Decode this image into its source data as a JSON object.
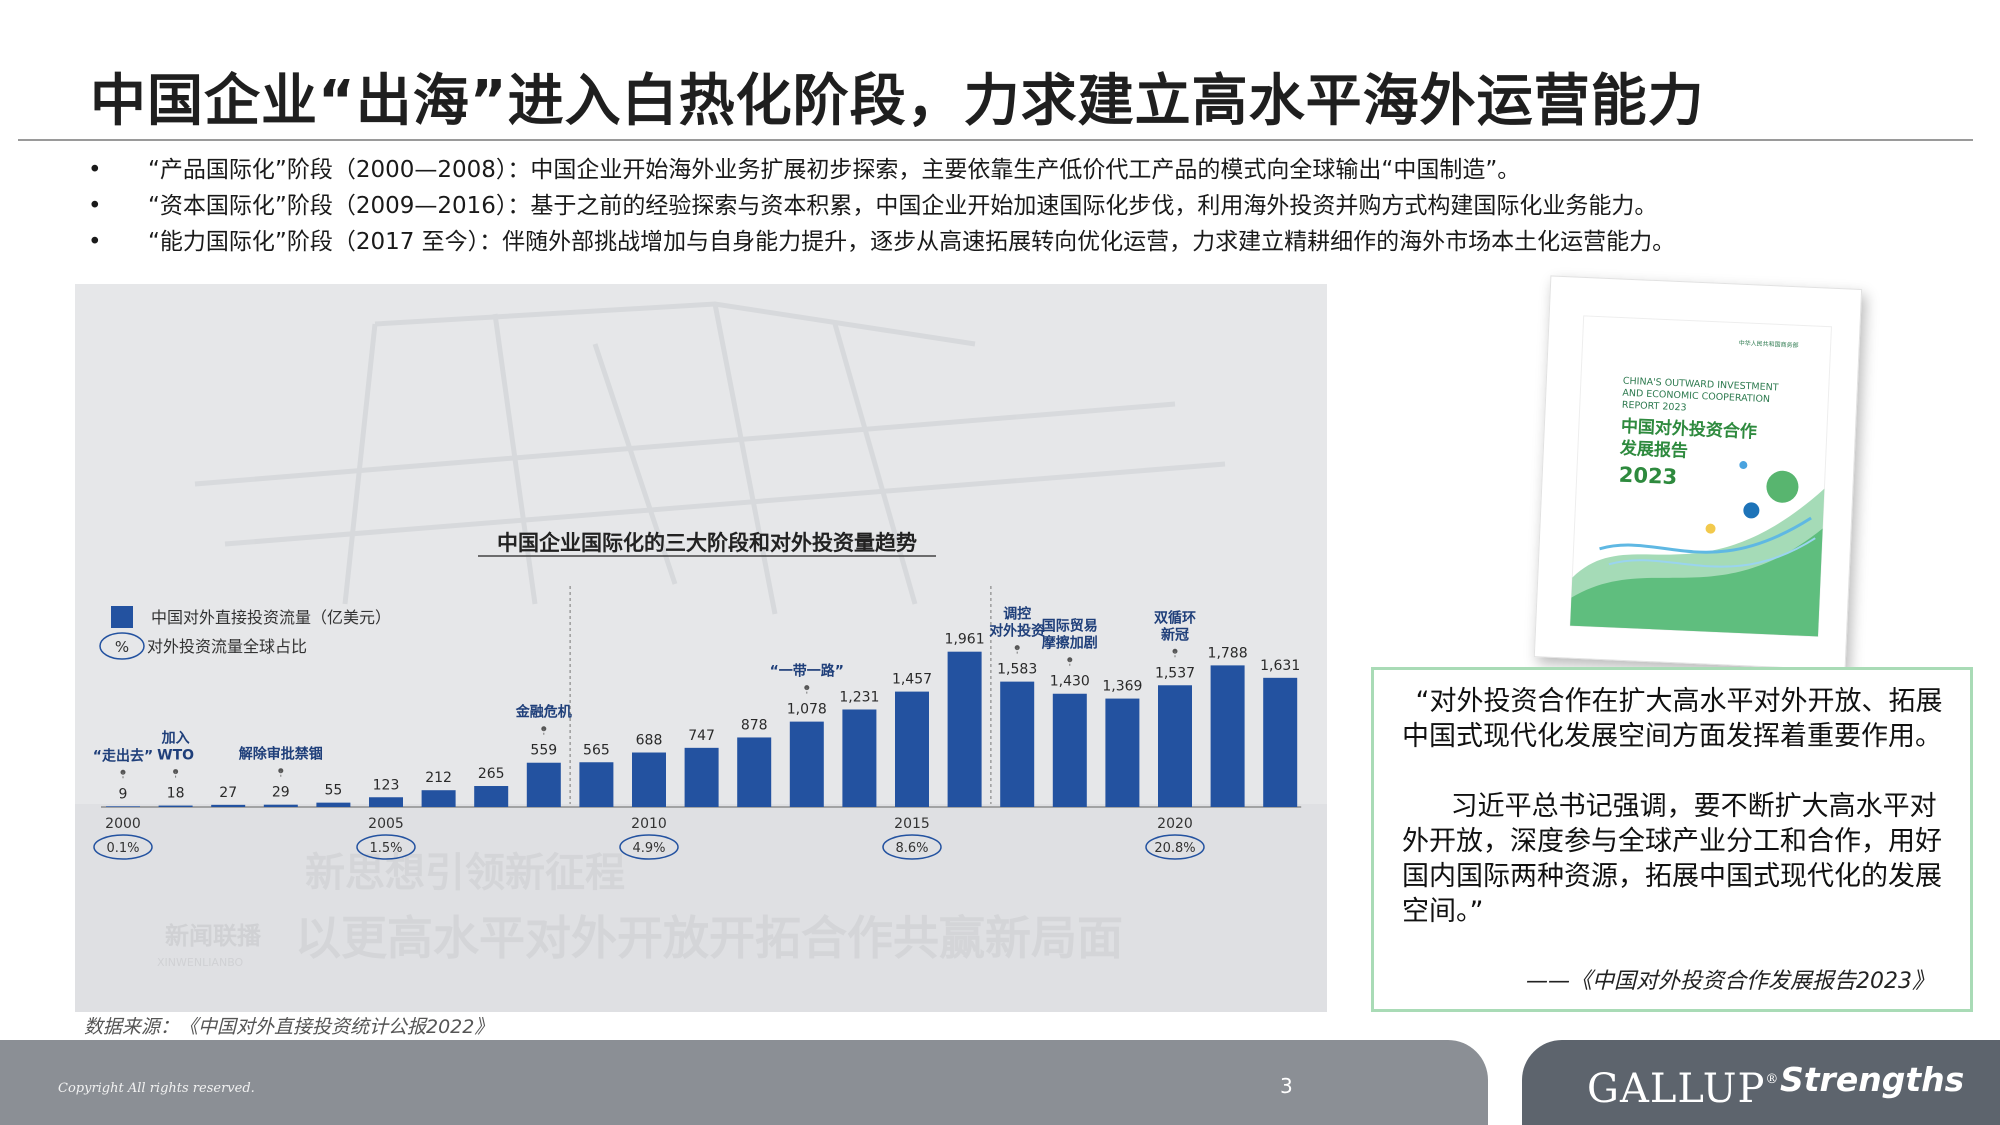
{
  "slide": {
    "title": "中国企业“出海”进入白热化阶段，力求建立高水平海外运营能力",
    "bullets": [
      "“产品国际化”阶段（2000—2008）：中国企业开始海外业务扩展初步探索，主要依靠生产低价代工产品的模式向全球输出“中国制造”。",
      "“资本国际化”阶段（2009—2016）：基于之前的经验探索与资本积累，中国企业开始加速国际化步伐，利用海外投资并购方式构建国际化业务能力。",
      "“能力国际化”阶段（2017 至今）：伴随外部挑战增加与自身能力提升，逐步从高速拓展转向优化运营，力求建立精耕细作的海外市场本土化运营能力。"
    ],
    "source": "数据来源：《中国对外直接投资统计公报2022》",
    "page_number": "3",
    "copyright": "Copyright All rights reserved."
  },
  "chart_data": {
    "type": "bar",
    "title": "中国企业国际化的三大阶段和对外投资量趋势",
    "legend": {
      "bar": "中国对外直接投资流量（亿美元）",
      "percent_symbol": "%",
      "percent": "对外投资流量全球占比"
    },
    "categories": [
      "2000",
      "2001",
      "2002",
      "2003",
      "2004",
      "2005",
      "2006",
      "2007",
      "2008",
      "2009",
      "2010",
      "2011",
      "2012",
      "2013",
      "2014",
      "2015",
      "2016",
      "2017",
      "2018",
      "2019",
      "2020",
      "2021",
      "2022"
    ],
    "values": [
      9,
      18,
      27,
      29,
      55,
      123,
      212,
      265,
      559,
      565,
      688,
      747,
      878,
      1078,
      1231,
      1457,
      1961,
      1583,
      1430,
      1369,
      1537,
      1788,
      1631
    ],
    "value_labels": [
      "9",
      "18",
      "27",
      "29",
      "55",
      "123",
      "212",
      "265",
      "559",
      "565",
      "688",
      "747",
      "878",
      "1,078",
      "1,231",
      "1,457",
      "1,961",
      "1,583",
      "1,430",
      "1,369",
      "1,537",
      "1,788",
      "1,631"
    ],
    "year_ticks": [
      {
        "label": "2000",
        "index": 0
      },
      {
        "label": "2005",
        "index": 5
      },
      {
        "label": "2010",
        "index": 10
      },
      {
        "label": "2015",
        "index": 15
      },
      {
        "label": "2020",
        "index": 20
      }
    ],
    "share_badges": [
      {
        "index": 0,
        "label": "0.1%"
      },
      {
        "index": 5,
        "label": "1.5%"
      },
      {
        "index": 10,
        "label": "4.9%"
      },
      {
        "index": 15,
        "label": "8.6%"
      },
      {
        "index": 20,
        "label": "20.8%"
      }
    ],
    "annotations": [
      {
        "index": 0,
        "lines": [
          "“走出去”"
        ]
      },
      {
        "index": 1,
        "lines": [
          "加入",
          "WTO"
        ]
      },
      {
        "index": 3,
        "lines": [
          "解除审批禁锢"
        ]
      },
      {
        "index": 8,
        "lines": [
          "金融危机"
        ]
      },
      {
        "index": 13,
        "lines": [
          "“一带一路”"
        ]
      },
      {
        "index": 17,
        "lines": [
          "调控",
          "对外投资"
        ]
      },
      {
        "index": 18,
        "lines": [
          "国际贸易",
          "摩擦加剧"
        ]
      },
      {
        "index": 20,
        "lines": [
          "双循环",
          "新冠"
        ]
      }
    ],
    "stage_dividers_after_index": [
      8,
      16
    ],
    "ylim": [
      0,
      2000
    ],
    "colors": {
      "bar": "#2352a0",
      "label": "#2a2a2a",
      "annotation": "#1f3f7a"
    }
  },
  "background_text": {
    "line1": "新思想引领新征程",
    "line2": "以更高水平对外开放开拓合作共赢新局面",
    "logo_cn": "新闻联播",
    "logo_en": "XINWENLIANBO"
  },
  "report_cover": {
    "org": "中华人民共和国商务部",
    "en_lines": [
      "CHINA'S OUTWARD INVESTMENT",
      "AND ECONOMIC COOPERATION",
      "REPORT 2023"
    ],
    "cn_lines": [
      "中国对外投资合作",
      "发展报告"
    ],
    "year": "2023"
  },
  "quote": {
    "paragraph1": "“对外投资合作在扩大高水平对外开放、拓展中国式现代化发展空间方面发挥着重要作用。",
    "paragraph2": "习近平总书记强调，要不断扩大高水平对外开放，深度参与全球产业分工和合作，用好国内国际两种资源，拓展中国式现代化的发展空间。”",
    "source": "——《中国对外投资合作发展报告2023》"
  },
  "branding": {
    "gallup": "GALLUP",
    "registered": "®",
    "strengths": "Strengths"
  }
}
